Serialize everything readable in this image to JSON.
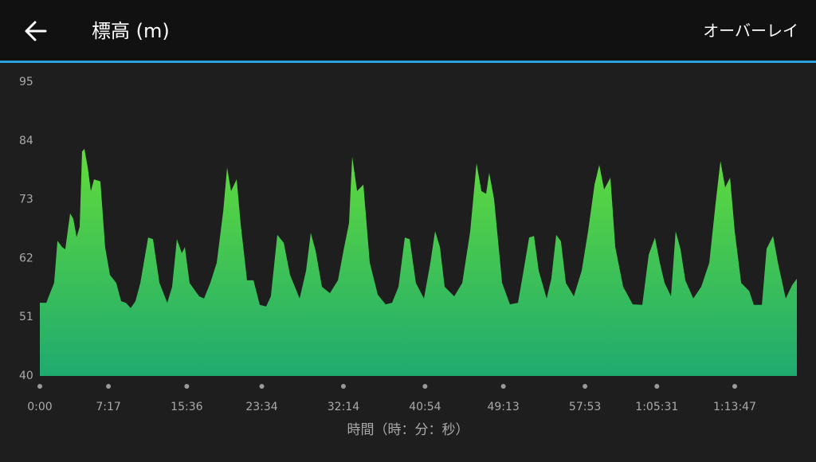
{
  "header": {
    "title": "標高 (m)",
    "action": "オーバーレイ"
  },
  "chart_data": {
    "type": "area",
    "x_label": "時間（時：分：秒）",
    "x": [
      0,
      41,
      61,
      91,
      112,
      142,
      162,
      193,
      213,
      234,
      254,
      269,
      284,
      305,
      325,
      345,
      386,
      416,
      447,
      487,
      518,
      548,
      579,
      609,
      640,
      690,
      721,
      762,
      812,
      843,
      873,
      904,
      924,
      954,
      1015,
      1046,
      1086,
      1127,
      1168,
      1193,
      1218,
      1254,
      1279,
      1320,
      1361,
      1401,
      1442,
      1472,
      1513,
      1554,
      1594,
      1655,
      1696,
      1726,
      1757,
      1797,
      1848,
      1899,
      1939,
      1970,
      1990,
      2021,
      2061,
      2102,
      2153,
      2203,
      2244,
      2285,
      2325,
      2356,
      2396,
      2447,
      2488,
      2518,
      2549,
      2579,
      2640,
      2691,
      2742,
      2782,
      2813,
      2843,
      2863,
      2894,
      2945,
      2995,
      3046,
      3077,
      3117,
      3148,
      3178,
      3229,
      3259,
      3290,
      3320,
      3351,
      3402,
      3452,
      3493,
      3534,
      3564,
      3595,
      3635,
      3666,
      3716,
      3777,
      3838,
      3879,
      3919,
      3950,
      3980,
      4021,
      4051,
      4082,
      4112,
      4163,
      4214,
      4265,
      4305,
      4336,
      4366,
      4397,
      4427,
      4468,
      4519,
      4549,
      4600,
      4630,
      4671,
      4702,
      4752,
      4793,
      4823
    ],
    "values": [
      53.7,
      53.7,
      55.2,
      57.4,
      65.3,
      64.1,
      63.7,
      70.4,
      69.4,
      66,
      67.9,
      82,
      82.5,
      79,
      74.6,
      76.8,
      76.4,
      64.1,
      58.9,
      57.4,
      54,
      53.7,
      52.7,
      54,
      57.4,
      65.9,
      65.6,
      57.4,
      53.7,
      56.7,
      65.6,
      63,
      64.1,
      57.4,
      54.9,
      54.5,
      57.4,
      61.2,
      70.8,
      79,
      74.6,
      76.8,
      68.6,
      57.9,
      57.9,
      53.3,
      53,
      54.9,
      66.4,
      64.9,
      58.9,
      54.5,
      59.7,
      66.8,
      63.4,
      56.7,
      55.5,
      57.9,
      64.1,
      68.6,
      81,
      74.6,
      75.8,
      61.2,
      55.2,
      53.4,
      53.7,
      56.7,
      65.9,
      65.6,
      57.4,
      54.5,
      61.2,
      67.1,
      64.1,
      56.7,
      54.9,
      57.4,
      67.1,
      79.8,
      74.6,
      74.1,
      78,
      73.1,
      57.4,
      53.4,
      53.7,
      58.9,
      65.9,
      66.2,
      59.7,
      54.5,
      58.2,
      66.4,
      65.2,
      57.4,
      54.9,
      59.7,
      67.1,
      75.8,
      79.5,
      74.9,
      77.1,
      64.1,
      56.7,
      53.4,
      53.3,
      62.7,
      65.9,
      61.2,
      57.4,
      54.9,
      67.1,
      63.7,
      57.9,
      54.5,
      56.7,
      61.2,
      72.3,
      80.2,
      75.3,
      77.1,
      67.1,
      57.4,
      55.9,
      53.3,
      53.3,
      63.8,
      66.2,
      61.2,
      54.5,
      57,
      58.2
    ],
    "color_top": "#62dc3a",
    "color_bottom": "#1faa70",
    "xlim": [
      0,
      4823
    ],
    "xticks": [
      {
        "value": 0,
        "label": "0:00"
      },
      {
        "value": 437,
        "label": "7:17"
      },
      {
        "value": 936,
        "label": "15:36"
      },
      {
        "value": 1414,
        "label": "23:34"
      },
      {
        "value": 1934,
        "label": "32:14"
      },
      {
        "value": 2454,
        "label": "40:54"
      },
      {
        "value": 2953,
        "label": "49:13"
      },
      {
        "value": 3473,
        "label": "57:53"
      },
      {
        "value": 3931,
        "label": "1:05:31"
      },
      {
        "value": 4427,
        "label": "1:13:47"
      }
    ],
    "ylim": [
      40,
      95
    ],
    "yticks": [
      40,
      51,
      62,
      73,
      84,
      95
    ]
  }
}
